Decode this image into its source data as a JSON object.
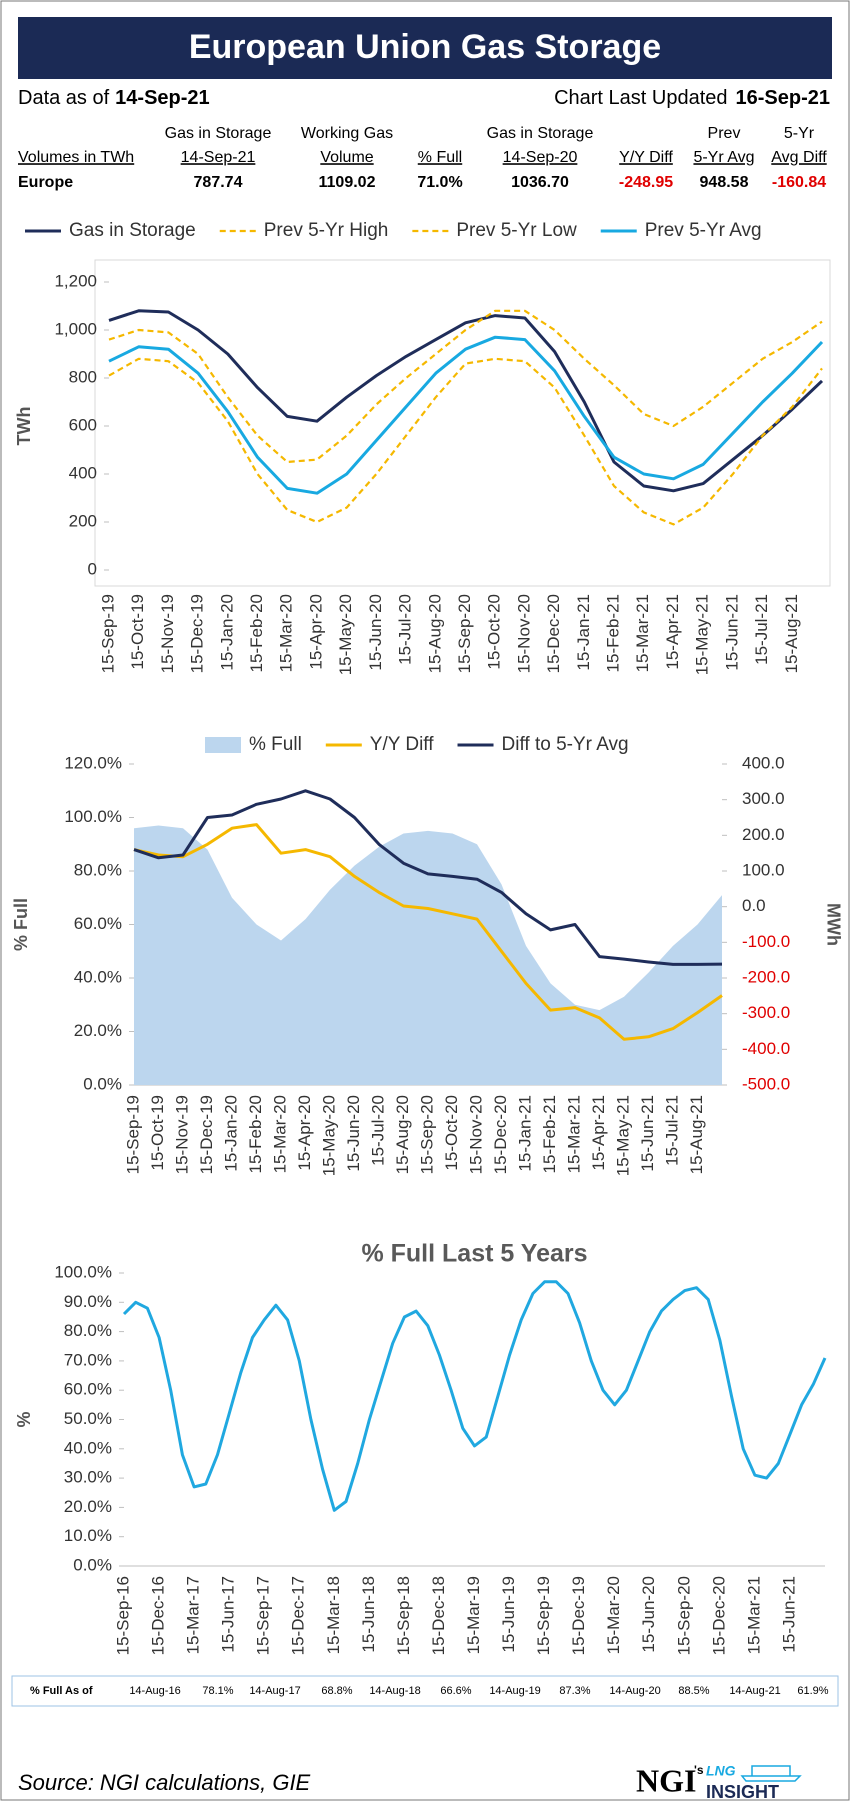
{
  "header": {
    "title": "European Union Gas Storage",
    "data_as_of_label": "Data as of",
    "data_as_of_date": "14-Sep-21",
    "updated_label": "Chart Last Updated",
    "updated_date": "16-Sep-21"
  },
  "summary_table": {
    "columns": [
      [
        "Volumes in TWh"
      ],
      [
        "Gas in Storage",
        "14-Sep-21"
      ],
      [
        "Working Gas",
        "Volume"
      ],
      [
        "% Full"
      ],
      [
        "Gas in Storage",
        "14-Sep-20"
      ],
      [
        "Y/Y Diff"
      ],
      [
        "Prev",
        "5-Yr Avg"
      ],
      [
        "5-Yr",
        "Avg Diff"
      ]
    ],
    "row": [
      "Europe",
      "787.74",
      "1109.02",
      "71.0%",
      "1036.70",
      "-248.95",
      "948.58",
      "-160.84"
    ],
    "negative_color": "#e00000"
  },
  "chart_data": [
    {
      "type": "line",
      "ylabel": "TWh",
      "legend": "top",
      "categories": [
        "15-Sep-19",
        "15-Oct-19",
        "15-Nov-19",
        "15-Dec-19",
        "15-Jan-20",
        "15-Feb-20",
        "15-Mar-20",
        "15-Apr-20",
        "15-May-20",
        "15-Jun-20",
        "15-Jul-20",
        "15-Aug-20",
        "15-Sep-20",
        "15-Oct-20",
        "15-Nov-20",
        "15-Dec-20",
        "15-Jan-21",
        "15-Feb-21",
        "15-Mar-21",
        "15-Apr-21",
        "15-May-21",
        "15-Jun-21",
        "15-Jul-21",
        "15-Aug-21",
        null
      ],
      "ylim": [
        0,
        1200
      ],
      "yticks": [
        0,
        200,
        400,
        600,
        800,
        {
          "value": 1000,
          "label": "1,000"
        },
        {
          "value": 1200,
          "label": "1,200"
        }
      ],
      "series": [
        {
          "name": "Gas in Storage",
          "color": "#1f2d5a",
          "values": [
            1040,
            1080,
            1075,
            1000,
            900,
            760,
            640,
            620,
            720,
            810,
            890,
            960,
            1030,
            1060,
            1050,
            910,
            700,
            450,
            350,
            330,
            360,
            460,
            560,
            670,
            788
          ]
        },
        {
          "name": "Prev 5-Yr High",
          "color": "#f5b800",
          "dash": true,
          "values": [
            960,
            1000,
            990,
            900,
            720,
            560,
            450,
            460,
            560,
            690,
            800,
            900,
            1000,
            1080,
            1080,
            1000,
            880,
            770,
            650,
            600,
            680,
            780,
            880,
            950,
            1035
          ]
        },
        {
          "name": "Prev 5-Yr Low",
          "color": "#f5b800",
          "dash": true,
          "values": [
            810,
            880,
            870,
            780,
            620,
            400,
            250,
            200,
            260,
            400,
            560,
            720,
            860,
            880,
            870,
            760,
            560,
            350,
            240,
            190,
            260,
            400,
            560,
            680,
            840
          ]
        },
        {
          "name": "Prev 5-Yr Avg",
          "color": "#18a9e1",
          "values": [
            870,
            930,
            920,
            820,
            660,
            470,
            340,
            320,
            400,
            540,
            680,
            820,
            920,
            970,
            960,
            830,
            640,
            470,
            400,
            380,
            440,
            570,
            700,
            820,
            950
          ]
        }
      ]
    },
    {
      "type": "combo",
      "ylabel": "% Full",
      "y2label": "MWh",
      "legend": "top",
      "categories": [
        "15-Sep-19",
        "15-Oct-19",
        "15-Nov-19",
        "15-Dec-19",
        "15-Jan-20",
        "15-Feb-20",
        "15-Mar-20",
        "15-Apr-20",
        "15-May-20",
        "15-Jun-20",
        "15-Jul-20",
        "15-Aug-20",
        "15-Sep-20",
        "15-Oct-20",
        "15-Nov-20",
        "15-Dec-20",
        "15-Jan-21",
        "15-Feb-21",
        "15-Mar-21",
        "15-Apr-21",
        "15-May-21",
        "15-Jun-21",
        "15-Jul-21",
        "15-Aug-21",
        null
      ],
      "ylim": [
        0,
        120
      ],
      "yticks": [
        {
          "value": 0,
          "label": "0.0%"
        },
        {
          "value": 20,
          "label": "20.0%"
        },
        {
          "value": 40,
          "label": "40.0%"
        },
        {
          "value": 60,
          "label": "60.0%"
        },
        {
          "value": 80,
          "label": "80.0%"
        },
        {
          "value": 100,
          "label": "100.0%"
        },
        {
          "value": 120,
          "label": "120.0%"
        }
      ],
      "y2lim": [
        -500,
        400
      ],
      "y2ticks": [
        {
          "value": 400,
          "label": "400.0"
        },
        {
          "value": 300,
          "label": "300.0"
        },
        {
          "value": 200,
          "label": "200.0"
        },
        {
          "value": 100,
          "label": "100.0"
        },
        {
          "value": 0,
          "label": "0.0"
        },
        {
          "value": -100,
          "label": "-100.0"
        },
        {
          "value": -200,
          "label": "-200.0"
        },
        {
          "value": -300,
          "label": "-300.0"
        },
        {
          "value": -400,
          "label": "-400.0"
        },
        {
          "value": -500,
          "label": "-500.0"
        }
      ],
      "y2_negative_color": "#e00000",
      "series": [
        {
          "name": "% Full",
          "type": "area",
          "color": "#bcd6ee",
          "values": [
            96,
            97,
            96,
            88,
            70,
            60,
            54,
            62,
            73,
            82,
            89,
            94,
            95,
            94,
            90,
            75,
            52,
            38,
            30,
            28,
            33,
            42,
            52,
            60,
            71
          ]
        },
        {
          "name": "Y/Y Diff",
          "axis": "y2",
          "color": "#f5b800",
          "values": [
            160,
            145,
            140,
            175,
            220,
            230,
            150,
            160,
            140,
            85,
            40,
            2,
            -5,
            -20,
            -35,
            -125,
            -215,
            -290,
            -283,
            -312,
            -372,
            -365,
            -342,
            -297,
            -249
          ]
        },
        {
          "name": "Diff to 5-Yr Avg",
          "axis": "y2",
          "color": "#1f2d5a",
          "values": [
            160,
            137,
            145,
            250,
            257,
            287,
            302,
            325,
            302,
            250,
            175,
            122,
            92,
            85,
            77,
            40,
            -20,
            -65,
            -50,
            -140,
            -147,
            -155,
            -162,
            -162,
            -161
          ]
        }
      ]
    },
    {
      "type": "line",
      "title": "% Full Last 5 Years",
      "ylabel": "%",
      "categories": [
        "15-Sep-16",
        null,
        null,
        "15-Dec-16",
        null,
        null,
        "15-Mar-17",
        null,
        null,
        "15-Jun-17",
        null,
        null,
        "15-Sep-17",
        null,
        null,
        "15-Dec-17",
        null,
        null,
        "15-Mar-18",
        null,
        null,
        "15-Jun-18",
        null,
        null,
        "15-Sep-18",
        null,
        null,
        "15-Dec-18",
        null,
        null,
        "15-Mar-19",
        null,
        null,
        "15-Jun-19",
        null,
        null,
        "15-Sep-19",
        null,
        null,
        "15-Dec-19",
        null,
        null,
        "15-Mar-20",
        null,
        null,
        "15-Jun-20",
        null,
        null,
        "15-Sep-20",
        null,
        null,
        "15-Dec-20",
        null,
        null,
        "15-Mar-21",
        null,
        null,
        "15-Jun-21",
        null,
        null,
        null
      ],
      "ylim": [
        0,
        100
      ],
      "yticks": [
        {
          "value": 0,
          "label": "0.0%"
        },
        {
          "value": 10,
          "label": "10.0%"
        },
        {
          "value": 20,
          "label": "20.0%"
        },
        {
          "value": 30,
          "label": "30.0%"
        },
        {
          "value": 40,
          "label": "40.0%"
        },
        {
          "value": 50,
          "label": "50.0%"
        },
        {
          "value": 60,
          "label": "60.0%"
        },
        {
          "value": 70,
          "label": "70.0%"
        },
        {
          "value": 80,
          "label": "80.0%"
        },
        {
          "value": 90,
          "label": "90.0%"
        },
        {
          "value": 100,
          "label": "100.0%"
        }
      ],
      "series": [
        {
          "name": "% Full",
          "color": "#20a8e0",
          "values": [
            86,
            90,
            88,
            78,
            60,
            38,
            27,
            28,
            38,
            52,
            66,
            78,
            84,
            89,
            84,
            70,
            50,
            33,
            19,
            22,
            35,
            50,
            63,
            76,
            85,
            87,
            82,
            72,
            60,
            47,
            41,
            44,
            58,
            72,
            84,
            93,
            97,
            97,
            93,
            83,
            70,
            60,
            55,
            60,
            70,
            80,
            87,
            91,
            94,
            95,
            91,
            77,
            58,
            40,
            31,
            30,
            35,
            45,
            55,
            62,
            71
          ]
        }
      ]
    }
  ],
  "footer_table": {
    "label": "% Full As of",
    "items": [
      {
        "date": "14-Aug-16",
        "value": "78.1%"
      },
      {
        "date": "14-Aug-17",
        "value": "68.8%"
      },
      {
        "date": "14-Aug-18",
        "value": "66.6%"
      },
      {
        "date": "14-Aug-19",
        "value": "87.3%"
      },
      {
        "date": "14-Aug-20",
        "value": "88.5%"
      },
      {
        "date": "14-Aug-21",
        "value": "61.9%"
      }
    ]
  },
  "source": "Source: NGI calculations, GIE",
  "logo": {
    "brand": "NGI",
    "possessive": "'s",
    "product_top": "LNG",
    "product_bottom": "INSIGHT"
  }
}
